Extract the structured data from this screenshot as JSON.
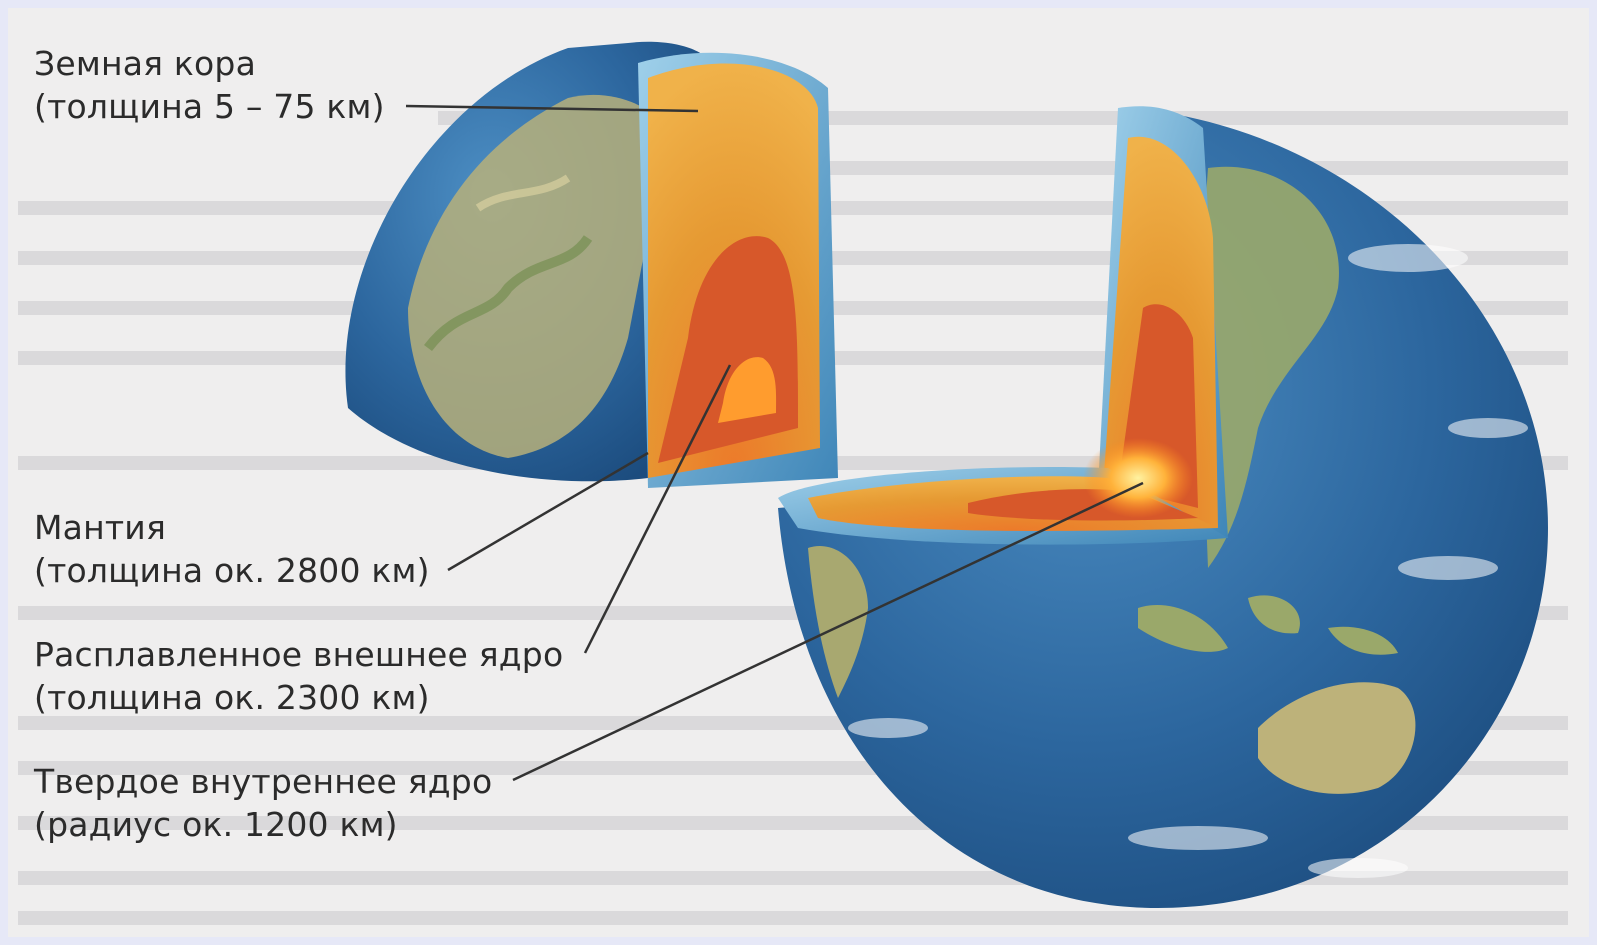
{
  "labels": {
    "crust": {
      "name": "Земная кора",
      "detail": "(толщина 5 – 75 км)"
    },
    "mantle": {
      "name": "Мантия",
      "detail": "(толщина ок. 2800 км)"
    },
    "outer_core": {
      "name": "Расплавленное внешнее ядро",
      "detail": "(толщина ок. 2300 км)"
    },
    "inner_core": {
      "name": "Твердое внутреннее ядро",
      "detail": "(радиус ок. 1200 км)"
    }
  },
  "colors": {
    "ocean": "#2f6fa8",
    "ocean_light": "#6fb3dc",
    "land": "#b9b47a",
    "crust": "#7ab8d8",
    "mantle": "#e0962c",
    "outer_core": "#d55c22",
    "inner_core": "#ffb43a",
    "leader_line": "#333333"
  }
}
